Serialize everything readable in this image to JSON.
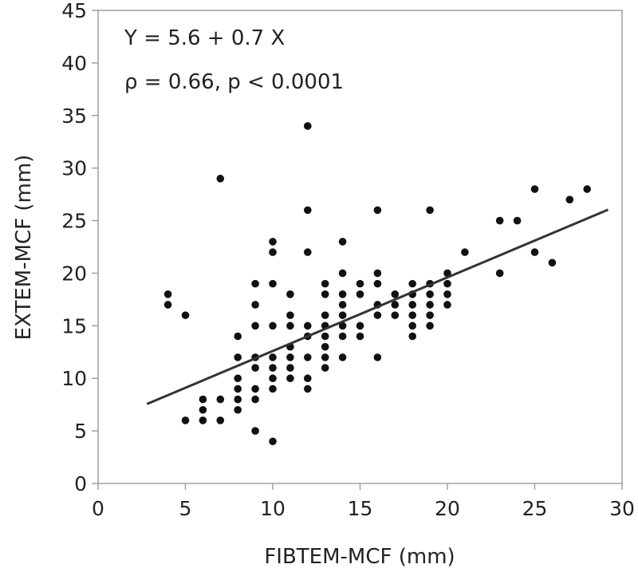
{
  "chart_data": {
    "type": "scatter",
    "title": "",
    "xlabel": "FIBTEM-MCF (mm)",
    "ylabel": "EXTEM-MCF (mm)",
    "xlim": [
      0,
      30
    ],
    "ylim": [
      0,
      45
    ],
    "xticks": [
      0,
      5,
      10,
      15,
      20,
      25,
      30
    ],
    "yticks": [
      0,
      5,
      10,
      15,
      20,
      25,
      30,
      35,
      40,
      45
    ],
    "grid": false,
    "annotations": [
      "Y = 5.6 + 0.7 X",
      "ρ = 0.66, p < 0.0001"
    ],
    "regression": {
      "intercept": 5.6,
      "slope": 0.7,
      "x_range": [
        2.8,
        29.2
      ]
    },
    "point_color": "#111111",
    "line_color": "#333333",
    "points": [
      [
        4,
        18
      ],
      [
        4,
        17
      ],
      [
        5,
        16
      ],
      [
        5,
        6
      ],
      [
        6,
        8
      ],
      [
        6,
        7
      ],
      [
        6,
        6
      ],
      [
        7,
        29
      ],
      [
        7,
        8
      ],
      [
        7,
        6
      ],
      [
        8,
        14
      ],
      [
        8,
        12
      ],
      [
        8,
        10
      ],
      [
        8,
        9
      ],
      [
        8,
        8
      ],
      [
        8,
        7
      ],
      [
        9,
        19
      ],
      [
        9,
        17
      ],
      [
        9,
        15
      ],
      [
        9,
        12
      ],
      [
        9,
        11
      ],
      [
        9,
        9
      ],
      [
        9,
        8
      ],
      [
        9,
        5
      ],
      [
        10,
        23
      ],
      [
        10,
        22
      ],
      [
        10,
        19
      ],
      [
        10,
        15
      ],
      [
        10,
        12
      ],
      [
        10,
        11
      ],
      [
        10,
        10
      ],
      [
        10,
        9
      ],
      [
        10,
        4
      ],
      [
        11,
        18
      ],
      [
        11,
        16
      ],
      [
        11,
        15
      ],
      [
        11,
        13
      ],
      [
        11,
        12
      ],
      [
        11,
        11
      ],
      [
        11,
        10
      ],
      [
        12,
        34
      ],
      [
        12,
        26
      ],
      [
        12,
        22
      ],
      [
        12,
        15
      ],
      [
        12,
        14
      ],
      [
        12,
        12
      ],
      [
        12,
        10
      ],
      [
        12,
        9
      ],
      [
        13,
        19
      ],
      [
        13,
        18
      ],
      [
        13,
        16
      ],
      [
        13,
        15
      ],
      [
        13,
        14
      ],
      [
        13,
        13
      ],
      [
        13,
        12
      ],
      [
        13,
        11
      ],
      [
        14,
        23
      ],
      [
        14,
        20
      ],
      [
        14,
        18
      ],
      [
        14,
        17
      ],
      [
        14,
        16
      ],
      [
        14,
        15
      ],
      [
        14,
        14
      ],
      [
        14,
        12
      ],
      [
        15,
        19
      ],
      [
        15,
        18
      ],
      [
        15,
        15
      ],
      [
        15,
        14
      ],
      [
        16,
        26
      ],
      [
        16,
        20
      ],
      [
        16,
        19
      ],
      [
        16,
        17
      ],
      [
        16,
        16
      ],
      [
        16,
        12
      ],
      [
        17,
        18
      ],
      [
        17,
        17
      ],
      [
        17,
        16
      ],
      [
        18,
        19
      ],
      [
        18,
        18
      ],
      [
        18,
        17
      ],
      [
        18,
        16
      ],
      [
        18,
        15
      ],
      [
        18,
        14
      ],
      [
        19,
        26
      ],
      [
        19,
        19
      ],
      [
        19,
        18
      ],
      [
        19,
        17
      ],
      [
        19,
        16
      ],
      [
        19,
        15
      ],
      [
        20,
        20
      ],
      [
        20,
        19
      ],
      [
        20,
        18
      ],
      [
        20,
        17
      ],
      [
        21,
        22
      ],
      [
        23,
        25
      ],
      [
        23,
        20
      ],
      [
        24,
        25
      ],
      [
        25,
        28
      ],
      [
        25,
        22
      ],
      [
        26,
        21
      ],
      [
        27,
        27
      ],
      [
        28,
        28
      ]
    ]
  }
}
